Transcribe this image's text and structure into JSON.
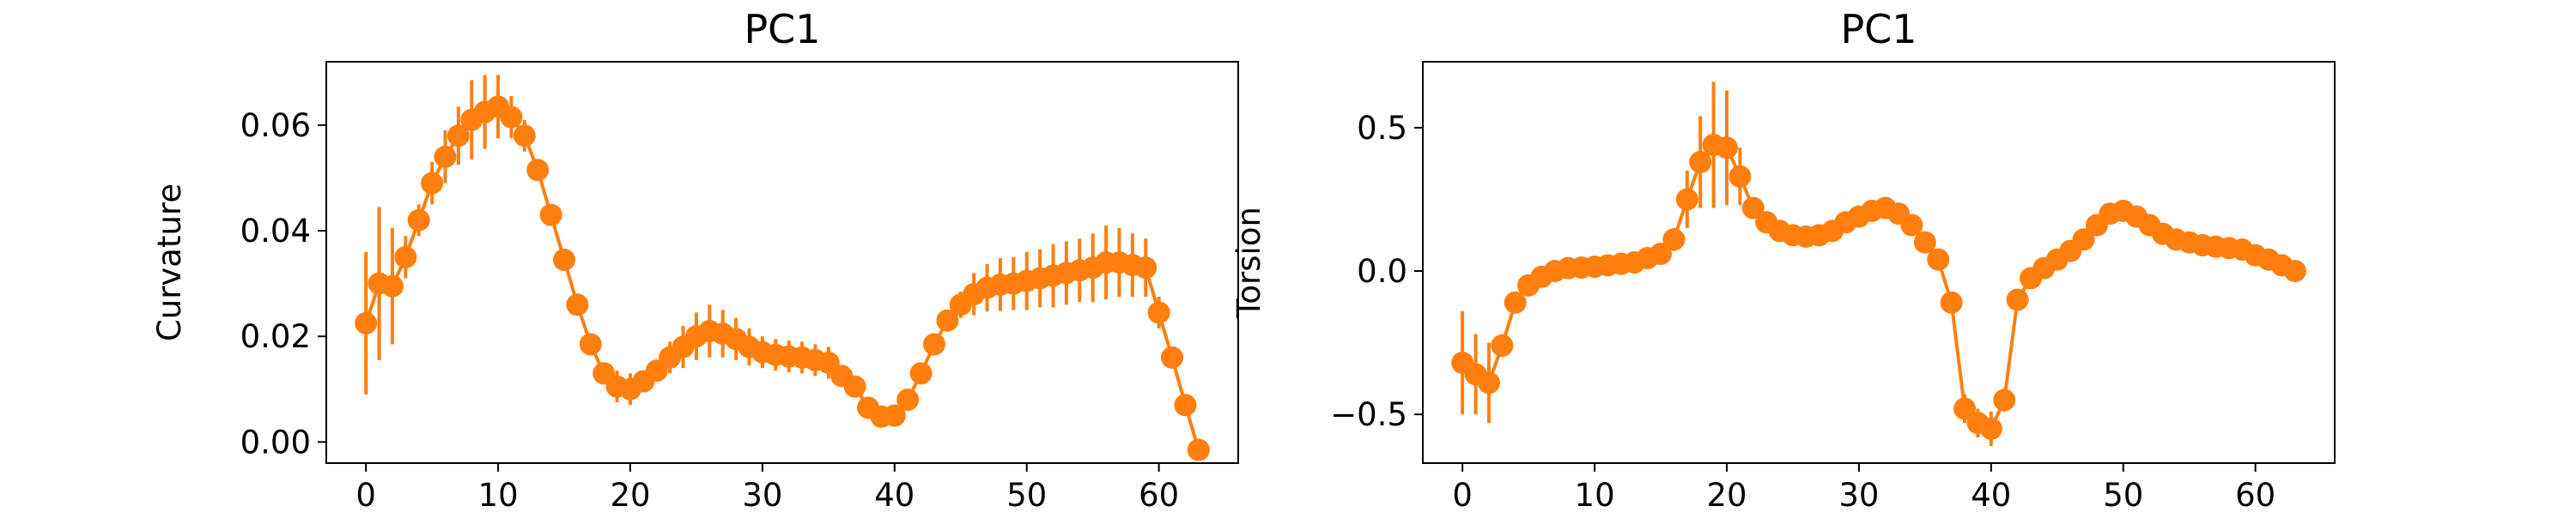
{
  "chart_data": [
    {
      "type": "line",
      "title": "PC1",
      "xlabel": "",
      "ylabel": "Curvature",
      "xlim": [
        -3,
        66
      ],
      "ylim": [
        -0.004,
        0.072
      ],
      "xticks": [
        0,
        10,
        20,
        30,
        40,
        50,
        60
      ],
      "xtick_labels": [
        "0",
        "10",
        "20",
        "30",
        "40",
        "50",
        "60"
      ],
      "yticks": [
        0.0,
        0.02,
        0.04,
        0.06
      ],
      "ytick_labels": [
        "0.00",
        "0.02",
        "0.04",
        "0.06"
      ],
      "grid": false,
      "color": "#ff7f0e",
      "series": [
        {
          "x": [
            0,
            1,
            2,
            3,
            4,
            5,
            6,
            7,
            8,
            9,
            10,
            11,
            12,
            13,
            14,
            15,
            16,
            17,
            18,
            19,
            20,
            21,
            22,
            23,
            24,
            25,
            26,
            27,
            28,
            29,
            30,
            31,
            32,
            33,
            34,
            35,
            36,
            37,
            38,
            39,
            40,
            41,
            42,
            43,
            44,
            45,
            46,
            47,
            48,
            49,
            50,
            51,
            52,
            53,
            54,
            55,
            56,
            57,
            58,
            59,
            60,
            61,
            62,
            63
          ],
          "y": [
            0.0225,
            0.03,
            0.0295,
            0.035,
            0.042,
            0.049,
            0.054,
            0.058,
            0.061,
            0.0625,
            0.0635,
            0.0615,
            0.058,
            0.0515,
            0.043,
            0.0345,
            0.026,
            0.0185,
            0.013,
            0.0105,
            0.01,
            0.0115,
            0.0135,
            0.016,
            0.018,
            0.02,
            0.021,
            0.0205,
            0.0195,
            0.018,
            0.017,
            0.0165,
            0.0162,
            0.016,
            0.0155,
            0.015,
            0.0125,
            0.0105,
            0.0065,
            0.0048,
            0.005,
            0.008,
            0.013,
            0.0185,
            0.023,
            0.026,
            0.028,
            0.0292,
            0.0298,
            0.03,
            0.0305,
            0.031,
            0.0315,
            0.032,
            0.0325,
            0.033,
            0.034,
            0.034,
            0.0335,
            0.033,
            0.0245,
            0.016,
            0.007,
            -0.0015
          ],
          "err": [
            0.0135,
            0.0145,
            0.011,
            0.004,
            0.003,
            0.004,
            0.005,
            0.0055,
            0.0075,
            0.007,
            0.006,
            0.004,
            0.003,
            0.002,
            0.002,
            0.002,
            0.002,
            0.002,
            0.002,
            0.003,
            0.003,
            0.002,
            0.002,
            0.003,
            0.004,
            0.0045,
            0.005,
            0.0045,
            0.004,
            0.0035,
            0.003,
            0.003,
            0.003,
            0.003,
            0.003,
            0.003,
            0.002,
            0.002,
            0.0015,
            0.0015,
            0.001,
            0.001,
            0.001,
            0.001,
            0.001,
            0.0025,
            0.004,
            0.0045,
            0.005,
            0.005,
            0.0055,
            0.0055,
            0.006,
            0.006,
            0.006,
            0.0065,
            0.007,
            0.0065,
            0.006,
            0.0055,
            0.003,
            0.002,
            0.001,
            0.001
          ]
        }
      ]
    },
    {
      "type": "line",
      "title": "PC1",
      "xlabel": "",
      "ylabel": "Torsion",
      "xlim": [
        -3,
        66
      ],
      "ylim": [
        -0.67,
        0.73
      ],
      "xticks": [
        0,
        10,
        20,
        30,
        40,
        50,
        60
      ],
      "xtick_labels": [
        "0",
        "10",
        "20",
        "30",
        "40",
        "50",
        "60"
      ],
      "yticks": [
        -0.5,
        0.0,
        0.5
      ],
      "ytick_labels": [
        "−0.5",
        "0.0",
        "0.5"
      ],
      "grid": false,
      "color": "#ff7f0e",
      "series": [
        {
          "x": [
            0,
            1,
            2,
            3,
            4,
            5,
            6,
            7,
            8,
            9,
            10,
            11,
            12,
            13,
            14,
            15,
            16,
            17,
            18,
            19,
            20,
            21,
            22,
            23,
            24,
            25,
            26,
            27,
            28,
            29,
            30,
            31,
            32,
            33,
            34,
            35,
            36,
            37,
            38,
            39,
            40,
            41,
            42,
            43,
            44,
            45,
            46,
            47,
            48,
            49,
            50,
            51,
            52,
            53,
            54,
            55,
            56,
            57,
            58,
            59,
            60,
            61,
            62,
            63
          ],
          "y": [
            -0.32,
            -0.36,
            -0.39,
            -0.26,
            -0.11,
            -0.05,
            -0.02,
            0.0,
            0.01,
            0.012,
            0.015,
            0.02,
            0.025,
            0.03,
            0.045,
            0.06,
            0.11,
            0.25,
            0.38,
            0.44,
            0.43,
            0.33,
            0.22,
            0.17,
            0.14,
            0.125,
            0.12,
            0.125,
            0.14,
            0.17,
            0.19,
            0.21,
            0.22,
            0.2,
            0.16,
            0.1,
            0.04,
            -0.11,
            -0.48,
            -0.53,
            -0.55,
            -0.45,
            -0.1,
            -0.025,
            0.01,
            0.04,
            0.07,
            0.11,
            0.16,
            0.2,
            0.21,
            0.19,
            0.16,
            0.13,
            0.11,
            0.1,
            0.09,
            0.085,
            0.08,
            0.075,
            0.055,
            0.04,
            0.02,
            0.0
          ],
          "err": [
            0.18,
            0.14,
            0.14,
            0.04,
            0.02,
            0.02,
            0.015,
            0.01,
            0.01,
            0.01,
            0.01,
            0.01,
            0.01,
            0.01,
            0.015,
            0.015,
            0.04,
            0.1,
            0.16,
            0.22,
            0.2,
            0.1,
            0.03,
            0.02,
            0.02,
            0.02,
            0.02,
            0.02,
            0.02,
            0.02,
            0.03,
            0.03,
            0.03,
            0.03,
            0.03,
            0.03,
            0.03,
            0.03,
            0.05,
            0.05,
            0.06,
            0.04,
            0.03,
            0.01,
            0.01,
            0.01,
            0.01,
            0.01,
            0.01,
            0.015,
            0.015,
            0.01,
            0.01,
            0.01,
            0.01,
            0.01,
            0.01,
            0.01,
            0.01,
            0.01,
            0.01,
            0.01,
            0.01,
            0.01
          ]
        }
      ]
    }
  ]
}
